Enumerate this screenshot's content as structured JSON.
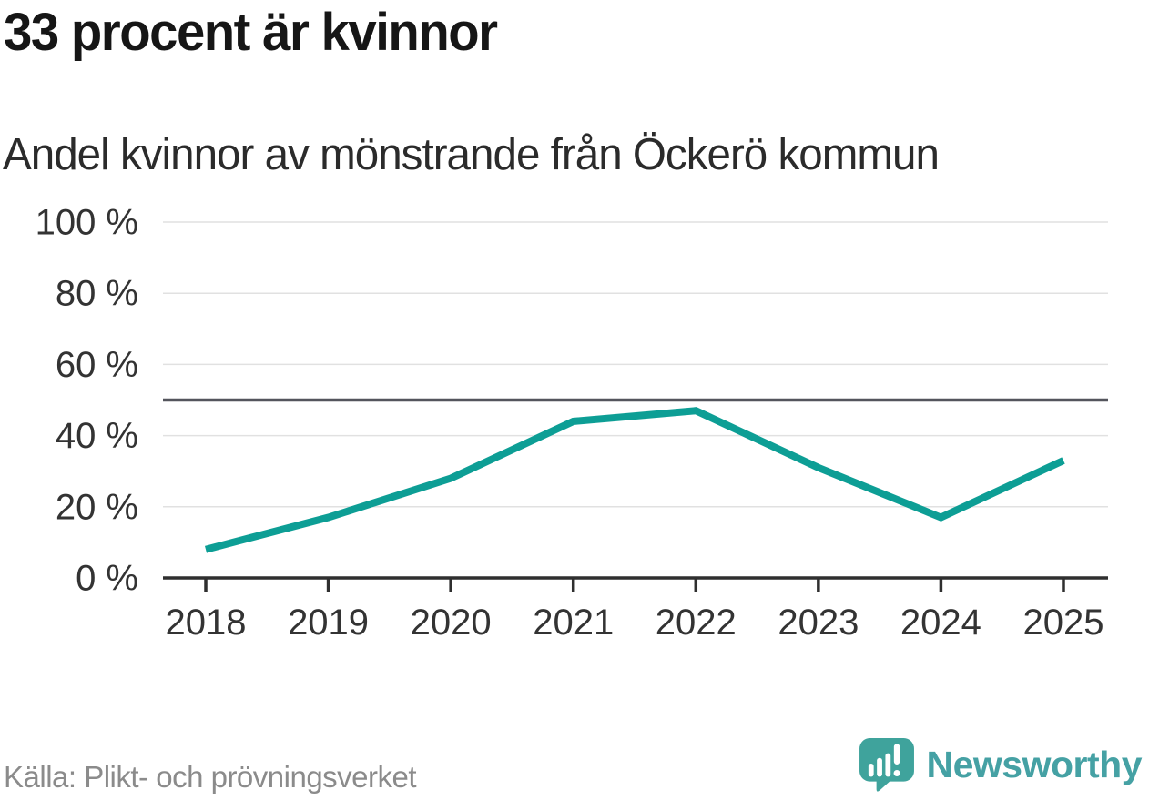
{
  "header": {
    "title": "33 procent är kvinnor",
    "subtitle": "Andel kvinnor av mönstrande från Öckerö kommun"
  },
  "chart_data": {
    "type": "line",
    "x": [
      "2018",
      "2019",
      "2020",
      "2021",
      "2022",
      "2023",
      "2024",
      "2025"
    ],
    "series": [
      {
        "name": "Andel kvinnor av mönstrande",
        "values": [
          8,
          17,
          28,
          44,
          47,
          31,
          17,
          33
        ],
        "color": "#0d9e95"
      }
    ],
    "title": "33 procent är kvinnor",
    "subtitle": "Andel kvinnor av mönstrande från Öckerö kommun",
    "xlabel": "",
    "ylabel": "",
    "unit": "%",
    "ylim": [
      0,
      100
    ],
    "ytick_step": 20,
    "ytick_labels": [
      "0 %",
      "20 %",
      "40 %",
      "60 %",
      "80 %",
      "100 %"
    ],
    "reference_line": {
      "value": 50,
      "color": "#54555c"
    },
    "grid": true,
    "legend": "none",
    "colors": {
      "gridline": "#e1e1e1",
      "axis": "#2f2f2f",
      "tick_label": "#333333"
    }
  },
  "footer": {
    "source": "Källa: Plikt- och prövningsverket",
    "brand": {
      "name": "Newsworthy",
      "text_color": "#45a1a4",
      "bubble_color": "#3fa39c",
      "icon": "newsworthy-bubble-chart-icon"
    }
  }
}
